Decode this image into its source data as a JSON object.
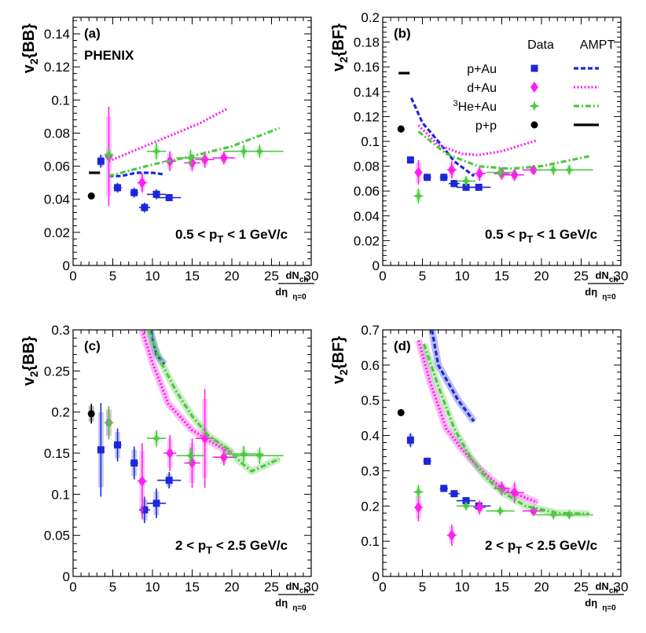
{
  "figure": {
    "experiment": "PHENIX",
    "legend": {
      "data_header": "Data",
      "model_header": "AMPT",
      "entries": [
        {
          "label": "p+Au",
          "color": "#1c28d8",
          "marker": "square",
          "dash": "6,3"
        },
        {
          "label": "d+Au",
          "color": "#ff1ef0",
          "marker": "diamond",
          "dash": "2,2.5"
        },
        {
          "label": "3He+Au",
          "sup": "3",
          "rest": "He+Au",
          "color": "#4ec842",
          "marker": "star",
          "dash": "7,3,2,3"
        },
        {
          "label": "p+p",
          "color": "#000000",
          "marker": "circle",
          "dash": ""
        }
      ]
    }
  },
  "chart_data": [
    {
      "type": "scatter",
      "panel_label": "(a)",
      "ylabel_main": "v",
      "ylabel_sub": "2",
      "ylabel_rest": "{BB}",
      "xlabel_num_main": "dN",
      "xlabel_num_sub": "ch",
      "xlabel_den_main": "dη",
      "xlabel_den_sub": "η=0",
      "pt_range": "0.5 < p_T < 1 GeV/c",
      "xlim": [
        0,
        30
      ],
      "ylim": [
        0,
        0.15
      ],
      "xticks": [
        0,
        5,
        10,
        15,
        20,
        25,
        30
      ],
      "yticks": [
        0,
        0.02,
        0.04,
        0.06,
        0.08,
        0.1,
        0.12,
        0.14
      ],
      "ytick_labels": [
        "0",
        "0.02",
        "0.04",
        "0.06",
        "0.08",
        "0.1",
        "0.12",
        "0.14"
      ],
      "series": [
        {
          "name": "p+Au",
          "points": [
            [
              3.5,
              0.063,
              0.004,
              0.3
            ],
            [
              5.6,
              0.047,
              0.003,
              0.5
            ],
            [
              7.7,
              0.044,
              0.003,
              0.5
            ],
            [
              9.0,
              0.035,
              0.003,
              0.7
            ],
            [
              10.5,
              0.043,
              0.003,
              1.2
            ],
            [
              12.1,
              0.041,
              0.002,
              1.5
            ]
          ],
          "model": [
            [
              4.5,
              0.054
            ],
            [
              6,
              0.054
            ],
            [
              8,
              0.056
            ],
            [
              10,
              0.056
            ],
            [
              11.5,
              0.055
            ]
          ]
        },
        {
          "name": "d+Au",
          "points": [
            [
              4.5,
              0.066,
              0.03,
              0.5
            ],
            [
              8.7,
              0.05,
              0.006,
              0.6
            ],
            [
              12.2,
              0.063,
              0.006,
              0.8
            ],
            [
              15.0,
              0.062,
              0.005,
              1
            ],
            [
              16.6,
              0.064,
              0.005,
              1.2
            ],
            [
              19.0,
              0.065,
              0.004,
              1.4
            ]
          ],
          "model": [
            [
              4.5,
              0.063
            ],
            [
              8,
              0.07
            ],
            [
              12,
              0.078
            ],
            [
              16,
              0.086
            ],
            [
              19.5,
              0.095
            ]
          ]
        },
        {
          "name": "3He+Au",
          "points": [
            [
              4.5,
              0.067,
              0.004,
              0.4
            ],
            [
              10.5,
              0.069,
              0.005,
              1.2
            ],
            [
              14.8,
              0.065,
              0.005,
              1.8
            ],
            [
              21.5,
              0.069,
              0.004,
              2.5
            ],
            [
              23.5,
              0.069,
              0.004,
              3
            ]
          ],
          "model": [
            [
              4.5,
              0.054
            ],
            [
              10,
              0.061
            ],
            [
              15,
              0.066
            ],
            [
              20,
              0.072
            ],
            [
              26,
              0.083
            ]
          ]
        },
        {
          "name": "p+p",
          "points": [
            [
              2.3,
              0.042,
              0.002,
              0
            ]
          ],
          "model": [
            [
              2.0,
              0.056
            ],
            [
              3.4,
              0.056
            ]
          ]
        }
      ]
    },
    {
      "type": "scatter",
      "panel_label": "(b)",
      "ylabel_main": "v",
      "ylabel_sub": "2",
      "ylabel_rest": "{BF}",
      "xlabel_num_main": "dN",
      "xlabel_num_sub": "ch",
      "xlabel_den_main": "dη",
      "xlabel_den_sub": "η=0",
      "pt_range": "0.5 < p_T < 1 GeV/c",
      "xlim": [
        0,
        30
      ],
      "ylim": [
        0,
        0.2
      ],
      "xticks": [
        0,
        5,
        10,
        15,
        20,
        25,
        30
      ],
      "yticks": [
        0,
        0.02,
        0.04,
        0.06,
        0.08,
        0.1,
        0.12,
        0.14,
        0.16,
        0.18,
        0.2
      ],
      "ytick_labels": [
        "0",
        "0.02",
        "0.04",
        "0.06",
        "0.08",
        "0.1",
        "0.12",
        "0.14",
        "0.16",
        "0.18",
        "0.2"
      ],
      "series": [
        {
          "name": "p+Au",
          "points": [
            [
              3.5,
              0.085,
              0.003,
              0.3
            ],
            [
              5.6,
              0.071,
              0.003,
              0.5
            ],
            [
              7.7,
              0.071,
              0.003,
              0.5
            ],
            [
              9.0,
              0.066,
              0.003,
              0.7
            ],
            [
              10.5,
              0.063,
              0.003,
              1.2
            ],
            [
              12.1,
              0.063,
              0.002,
              1.5
            ]
          ],
          "model": [
            [
              3.6,
              0.135
            ],
            [
              5,
              0.115
            ],
            [
              7,
              0.1
            ],
            [
              9,
              0.084
            ],
            [
              11.5,
              0.072
            ]
          ]
        },
        {
          "name": "d+Au",
          "points": [
            [
              4.5,
              0.075,
              0.01,
              0.5
            ],
            [
              8.7,
              0.077,
              0.007,
              0.6
            ],
            [
              12.2,
              0.074,
              0.006,
              0.8
            ],
            [
              15.0,
              0.074,
              0.005,
              1
            ],
            [
              16.6,
              0.073,
              0.005,
              1.2
            ],
            [
              19.0,
              0.077,
              0.004,
              1.4
            ]
          ],
          "model": [
            [
              4.5,
              0.113
            ],
            [
              7,
              0.097
            ],
            [
              10,
              0.09
            ],
            [
              12,
              0.089
            ],
            [
              15,
              0.092
            ],
            [
              19.5,
              0.101
            ]
          ]
        },
        {
          "name": "3He+Au",
          "points": [
            [
              4.5,
              0.056,
              0.006,
              0.4
            ],
            [
              10.5,
              0.068,
              0.004,
              1.2
            ],
            [
              14.8,
              0.075,
              0.004,
              1.8
            ],
            [
              21.5,
              0.077,
              0.004,
              2.5
            ],
            [
              23.5,
              0.077,
              0.004,
              3
            ]
          ],
          "model": [
            [
              4.5,
              0.108
            ],
            [
              8,
              0.09
            ],
            [
              12,
              0.08
            ],
            [
              16,
              0.078
            ],
            [
              20,
              0.08
            ],
            [
              26,
              0.088
            ]
          ]
        },
        {
          "name": "p+p",
          "points": [
            [
              2.3,
              0.11,
              0.003,
              0
            ]
          ],
          "model": [
            [
              2.0,
              0.155
            ],
            [
              3.4,
              0.155
            ]
          ]
        }
      ]
    },
    {
      "type": "scatter",
      "panel_label": "(c)",
      "ylabel_main": "v",
      "ylabel_sub": "2",
      "ylabel_rest": "{BB}",
      "xlabel_num_main": "dN",
      "xlabel_num_sub": "ch",
      "xlabel_den_main": "dη",
      "xlabel_den_sub": "η=0",
      "pt_range": "2 < p_T < 2.5 GeV/c",
      "xlim": [
        0,
        30
      ],
      "ylim": [
        0,
        0.3
      ],
      "xticks": [
        0,
        5,
        10,
        15,
        20,
        25,
        30
      ],
      "yticks": [
        0,
        0.05,
        0.1,
        0.15,
        0.2,
        0.25,
        0.3
      ],
      "ytick_labels": [
        "0",
        "0.05",
        "0.1",
        "0.15",
        "0.2",
        "0.25",
        "0.3"
      ],
      "series": [
        {
          "name": "p+Au",
          "points": [
            [
              3.5,
              0.154,
              0.057,
              0.3
            ],
            [
              5.6,
              0.16,
              0.02,
              0.5
            ],
            [
              7.7,
              0.138,
              0.02,
              0.5
            ],
            [
              9.0,
              0.081,
              0.016,
              0.7
            ],
            [
              10.5,
              0.089,
              0.018,
              1.2
            ],
            [
              12.1,
              0.117,
              0.01,
              1.5
            ]
          ],
          "model": [
            [
              9.7,
              0.3
            ],
            [
              10.5,
              0.27
            ],
            [
              11.5,
              0.258
            ]
          ]
        },
        {
          "name": "d+Au",
          "points": [
            [
              4.5,
              0.187,
              0.02,
              0.5
            ],
            [
              8.7,
              0.116,
              0.046,
              0.6
            ],
            [
              12.2,
              0.15,
              0.022,
              0.8
            ],
            [
              15.0,
              0.138,
              0.03,
              1
            ],
            [
              16.6,
              0.168,
              0.06,
              1.2
            ],
            [
              19.0,
              0.145,
              0.01,
              1.4
            ]
          ],
          "model": [
            [
              8.7,
              0.3
            ],
            [
              10,
              0.26
            ],
            [
              12,
              0.21
            ],
            [
              15,
              0.178
            ],
            [
              18,
              0.16
            ],
            [
              20,
              0.15
            ]
          ]
        },
        {
          "name": "3He+Au",
          "points": [
            [
              4.5,
              0.187,
              0.02,
              0.4
            ],
            [
              10.5,
              0.168,
              0.01,
              1.2
            ],
            [
              14.8,
              0.147,
              0.01,
              1.8
            ],
            [
              21.5,
              0.149,
              0.01,
              2.5
            ],
            [
              23.5,
              0.147,
              0.01,
              3
            ]
          ],
          "model": [
            [
              9.5,
              0.3
            ],
            [
              11,
              0.262
            ],
            [
              13,
              0.225
            ],
            [
              15,
              0.195
            ],
            [
              17,
              0.172
            ],
            [
              19.5,
              0.155
            ],
            [
              21,
              0.14
            ],
            [
              22.5,
              0.128
            ],
            [
              26,
              0.143
            ]
          ]
        },
        {
          "name": "p+p",
          "points": [
            [
              2.3,
              0.198,
              0.012,
              0
            ]
          ],
          "model": []
        }
      ]
    },
    {
      "type": "scatter",
      "panel_label": "(d)",
      "ylabel_main": "v",
      "ylabel_sub": "2",
      "ylabel_rest": "{BF}",
      "xlabel_num_main": "dN",
      "xlabel_num_sub": "ch",
      "xlabel_den_main": "dη",
      "xlabel_den_sub": "η=0",
      "pt_range": "2 < p_T < 2.5 GeV/c",
      "xlim": [
        0,
        30
      ],
      "ylim": [
        0,
        0.7
      ],
      "xticks": [
        0,
        5,
        10,
        15,
        20,
        25,
        30
      ],
      "yticks": [
        0,
        0.1,
        0.2,
        0.3,
        0.4,
        0.5,
        0.6,
        0.7
      ],
      "ytick_labels": [
        "0",
        "0.1",
        "0.2",
        "0.3",
        "0.4",
        "0.5",
        "0.6",
        "0.7"
      ],
      "series": [
        {
          "name": "p+Au",
          "points": [
            [
              3.5,
              0.387,
              0.02,
              0.3
            ],
            [
              5.6,
              0.327,
              0.01,
              0.5
            ],
            [
              7.7,
              0.25,
              0.01,
              0.5
            ],
            [
              9.0,
              0.235,
              0.01,
              0.7
            ],
            [
              10.5,
              0.215,
              0.01,
              1.2
            ],
            [
              12.1,
              0.2,
              0.01,
              1.5
            ]
          ],
          "model": [
            [
              6.2,
              0.7
            ],
            [
              7,
              0.6
            ],
            [
              8,
              0.56
            ],
            [
              9.5,
              0.5
            ],
            [
              11.5,
              0.44
            ]
          ]
        },
        {
          "name": "d+Au",
          "points": [
            [
              4.5,
              0.196,
              0.04,
              0.5
            ],
            [
              8.7,
              0.117,
              0.03,
              0.6
            ],
            [
              12.2,
              0.196,
              0.02,
              0.8
            ],
            [
              15.0,
              0.25,
              0.02,
              1
            ],
            [
              16.6,
              0.238,
              0.03,
              1.2
            ],
            [
              19.0,
              0.186,
              0.01,
              1.4
            ]
          ],
          "model": [
            [
              4.5,
              0.67
            ],
            [
              6,
              0.55
            ],
            [
              8,
              0.42
            ],
            [
              10,
              0.36
            ],
            [
              12,
              0.31
            ],
            [
              15,
              0.25
            ],
            [
              19.5,
              0.21
            ]
          ]
        },
        {
          "name": "3He+Au",
          "points": [
            [
              4.5,
              0.24,
              0.02,
              0.4
            ],
            [
              10.5,
              0.2,
              0.01,
              1.2
            ],
            [
              14.8,
              0.186,
              0.01,
              1.8
            ],
            [
              21.5,
              0.175,
              0.01,
              2.5
            ],
            [
              23.5,
              0.175,
              0.01,
              3
            ]
          ],
          "model": [
            [
              5.2,
              0.66
            ],
            [
              7,
              0.54
            ],
            [
              9,
              0.42
            ],
            [
              11,
              0.34
            ],
            [
              13,
              0.28
            ],
            [
              15,
              0.24
            ],
            [
              18,
              0.2
            ],
            [
              22,
              0.18
            ],
            [
              26,
              0.178
            ]
          ]
        },
        {
          "name": "p+p",
          "points": [
            [
              2.3,
              0.465,
              0.01,
              0
            ]
          ],
          "model": []
        }
      ]
    }
  ]
}
